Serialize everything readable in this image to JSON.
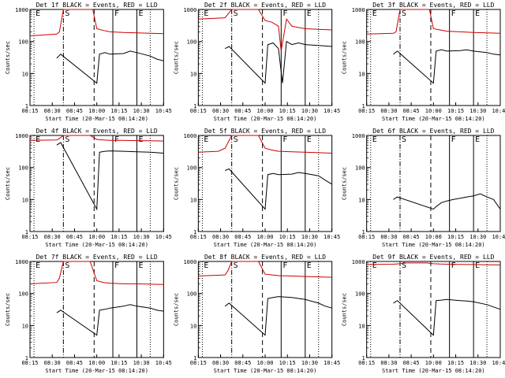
{
  "chart_data": [
    {
      "type": "line",
      "title": "Det 1f BLACK = Events, RED = LLD",
      "xlabel": "Start Time (20-Mar-15 08:14:20)",
      "ylabel": "Counts/sec",
      "x_ticks": [
        "08:15",
        "08:30",
        "08:45",
        "10:00",
        "10:15",
        "10:30",
        "10:45"
      ],
      "y_scale": "log",
      "ylim": [
        1,
        1000
      ],
      "y_ticks": [
        "1",
        "10",
        "100",
        "1000"
      ],
      "markers": [
        {
          "label": "E",
          "style": "dotted",
          "x": 0.03
        },
        {
          "label": "S",
          "style": "dashdot",
          "x": 0.25
        },
        {
          "label": "",
          "style": "dashed",
          "x": 0.48
        },
        {
          "label": "F",
          "style": "solid",
          "x": 0.62
        },
        {
          "label": "E",
          "style": "solid",
          "x": 0.8
        },
        {
          "label": "",
          "style": "dotted",
          "x": 0.9
        }
      ],
      "series": [
        {
          "color": "#cc0000",
          "x": [
            0.0,
            0.2,
            0.22,
            0.25,
            0.47,
            0.5,
            0.55,
            0.6,
            0.7,
            0.8,
            0.9,
            1.0
          ],
          "y": [
            150,
            170,
            200,
            1000,
            1000,
            250,
            220,
            200,
            190,
            185,
            180,
            175
          ]
        },
        {
          "color": "#000000",
          "x": [
            0.2,
            0.23,
            0.5,
            0.52,
            0.56,
            0.6,
            0.7,
            0.75,
            0.8,
            0.9,
            0.95,
            1.0
          ],
          "y": [
            30,
            40,
            5,
            40,
            45,
            40,
            42,
            50,
            45,
            35,
            28,
            25
          ]
        }
      ]
    },
    {
      "type": "line",
      "title": "Det 2f BLACK = Events, RED = LLD",
      "xlabel": "Start Time (20-Mar-15 08:14:20)",
      "ylabel": "Counts/sec",
      "x_ticks": [
        "08:15",
        "08:30",
        "08:45",
        "10:00",
        "10:15",
        "10:30",
        "10:45"
      ],
      "y_scale": "log",
      "ylim": [
        1,
        1000
      ],
      "y_ticks": [
        "1",
        "10",
        "100",
        "1000"
      ],
      "markers": [
        {
          "label": "E",
          "style": "dotted",
          "x": 0.03
        },
        {
          "label": "S",
          "style": "dashdot",
          "x": 0.25
        },
        {
          "label": "",
          "style": "dashed",
          "x": 0.48
        },
        {
          "label": "F",
          "style": "solid",
          "x": 0.62
        },
        {
          "label": "E",
          "style": "solid",
          "x": 0.8
        },
        {
          "label": "",
          "style": "dotted",
          "x": 0.9
        }
      ],
      "series": [
        {
          "color": "#cc0000",
          "x": [
            0.0,
            0.2,
            0.22,
            0.25,
            0.45,
            0.5,
            0.55,
            0.6,
            0.62,
            0.66,
            0.7,
            0.8,
            0.9,
            1.0
          ],
          "y": [
            500,
            550,
            700,
            1000,
            1000,
            450,
            400,
            300,
            50,
            500,
            300,
            250,
            240,
            230
          ]
        },
        {
          "color": "#000000",
          "x": [
            0.2,
            0.23,
            0.5,
            0.52,
            0.56,
            0.6,
            0.63,
            0.66,
            0.7,
            0.75,
            0.8,
            0.9,
            1.0
          ],
          "y": [
            60,
            70,
            5,
            80,
            90,
            60,
            5,
            100,
            80,
            90,
            80,
            75,
            70
          ]
        }
      ]
    },
    {
      "type": "line",
      "title": "Det 3f BLACK = Events, RED = LLD",
      "xlabel": "Start Time (20-Mar-15 08:14:20)",
      "ylabel": "Counts/sec",
      "x_ticks": [
        "08:15",
        "08:30",
        "08:45",
        "10:00",
        "10:15",
        "10:30",
        "10:45"
      ],
      "y_scale": "log",
      "ylim": [
        1,
        1000
      ],
      "y_ticks": [
        "1",
        "10",
        "100",
        "1000"
      ],
      "markers": [
        {
          "label": "E",
          "style": "dotted",
          "x": 0.03
        },
        {
          "label": "S",
          "style": "dashdot",
          "x": 0.25
        },
        {
          "label": "",
          "style": "dashed",
          "x": 0.48
        },
        {
          "label": "F",
          "style": "solid",
          "x": 0.62
        },
        {
          "label": "E",
          "style": "solid",
          "x": 0.8
        },
        {
          "label": "",
          "style": "dotted",
          "x": 0.9
        }
      ],
      "series": [
        {
          "color": "#cc0000",
          "x": [
            0.0,
            0.2,
            0.22,
            0.25,
            0.47,
            0.5,
            0.55,
            0.6,
            0.7,
            0.8,
            0.9,
            1.0
          ],
          "y": [
            170,
            180,
            200,
            1000,
            1000,
            250,
            230,
            210,
            200,
            190,
            185,
            180
          ]
        },
        {
          "color": "#000000",
          "x": [
            0.2,
            0.23,
            0.5,
            0.52,
            0.56,
            0.6,
            0.7,
            0.75,
            0.8,
            0.9,
            0.95,
            1.0
          ],
          "y": [
            40,
            50,
            5,
            50,
            55,
            50,
            52,
            55,
            50,
            45,
            40,
            38
          ]
        }
      ]
    },
    {
      "type": "line",
      "title": "Det 4f BLACK = Events, RED = LLD",
      "xlabel": "Start Time (20-Mar-15 08:14:20)",
      "ylabel": "Counts/sec",
      "x_ticks": [
        "08:15",
        "08:30",
        "08:45",
        "10:00",
        "10:15",
        "10:30",
        "10:45"
      ],
      "y_scale": "log",
      "ylim": [
        1,
        1000
      ],
      "y_ticks": [
        "1",
        "10",
        "100",
        "1000"
      ],
      "markers": [
        {
          "label": "E",
          "style": "dotted",
          "x": 0.03
        },
        {
          "label": "S",
          "style": "dashdot",
          "x": 0.25
        },
        {
          "label": "",
          "style": "dashed",
          "x": 0.48
        },
        {
          "label": "F",
          "style": "solid",
          "x": 0.62
        },
        {
          "label": "E",
          "style": "solid",
          "x": 0.8
        },
        {
          "label": "",
          "style": "dotted",
          "x": 0.9
        }
      ],
      "series": [
        {
          "color": "#cc0000",
          "x": [
            0.0,
            0.2,
            0.22,
            0.25,
            0.45,
            0.5,
            0.55,
            0.6,
            0.7,
            0.8,
            0.9,
            1.0
          ],
          "y": [
            700,
            720,
            800,
            1000,
            1000,
            750,
            720,
            700,
            700,
            690,
            680,
            670
          ]
        },
        {
          "color": "#000000",
          "x": [
            0.2,
            0.23,
            0.5,
            0.52,
            0.56,
            0.6,
            0.7,
            0.8,
            0.9,
            0.95,
            1.0
          ],
          "y": [
            500,
            600,
            5,
            300,
            320,
            330,
            320,
            310,
            300,
            290,
            280
          ]
        }
      ]
    },
    {
      "type": "line",
      "title": "Det 5f BLACK = Events, RED = LLD",
      "xlabel": "Start Time (20-Mar-15 08:14:20)",
      "ylabel": "Counts/sec",
      "x_ticks": [
        "08:15",
        "08:30",
        "08:45",
        "10:00",
        "10:15",
        "10:30",
        "10:45"
      ],
      "y_scale": "log",
      "ylim": [
        1,
        1000
      ],
      "y_ticks": [
        "1",
        "10",
        "100",
        "1000"
      ],
      "markers": [
        {
          "label": "E",
          "style": "dotted",
          "x": 0.03
        },
        {
          "label": "S",
          "style": "dashdot",
          "x": 0.25
        },
        {
          "label": "",
          "style": "dashed",
          "x": 0.48
        },
        {
          "label": "F",
          "style": "solid",
          "x": 0.62
        },
        {
          "label": "E",
          "style": "solid",
          "x": 0.8
        },
        {
          "label": "",
          "style": "dotted",
          "x": 0.9
        }
      ],
      "series": [
        {
          "color": "#cc0000",
          "x": [
            0.0,
            0.15,
            0.2,
            0.25,
            0.45,
            0.5,
            0.55,
            0.6,
            0.7,
            0.8,
            0.9,
            1.0
          ],
          "y": [
            300,
            320,
            400,
            1000,
            1000,
            400,
            350,
            320,
            310,
            300,
            290,
            280
          ]
        },
        {
          "color": "#000000",
          "x": [
            0.2,
            0.23,
            0.5,
            0.52,
            0.56,
            0.6,
            0.7,
            0.75,
            0.8,
            0.9,
            0.95,
            1.0
          ],
          "y": [
            80,
            90,
            5,
            60,
            65,
            60,
            62,
            70,
            65,
            55,
            40,
            30
          ]
        }
      ]
    },
    {
      "type": "line",
      "title": "Det 6f BLACK = Events, RED = LLD",
      "xlabel": "Start Time (20-Mar-15 08:14:20)",
      "ylabel": "Counts/sec",
      "x_ticks": [
        "08:15",
        "08:30",
        "08:45",
        "10:00",
        "10:15",
        "10:30",
        "10:45"
      ],
      "y_scale": "log",
      "ylim": [
        1,
        1000
      ],
      "y_ticks": [
        "1",
        "10",
        "100",
        "1000"
      ],
      "markers": [
        {
          "label": "E",
          "style": "dotted",
          "x": 0.03
        },
        {
          "label": "S",
          "style": "dashdot",
          "x": 0.25
        },
        {
          "label": "",
          "style": "dashed",
          "x": 0.48
        },
        {
          "label": "F",
          "style": "solid",
          "x": 0.62
        },
        {
          "label": "E",
          "style": "solid",
          "x": 0.8
        },
        {
          "label": "",
          "style": "dotted",
          "x": 0.9
        }
      ],
      "series": [
        {
          "color": "#000000",
          "x": [
            0.2,
            0.23,
            0.5,
            0.52,
            0.56,
            0.6,
            0.65,
            0.7,
            0.75,
            0.8,
            0.85,
            0.9,
            0.95,
            1.0
          ],
          "y": [
            10,
            12,
            5,
            6,
            8,
            9,
            10,
            11,
            12,
            13,
            15,
            12,
            10,
            5
          ]
        }
      ]
    },
    {
      "type": "line",
      "title": "Det 7f BLACK = Events, RED = LLD",
      "xlabel": "Start Time (20-Mar-15 08:14:20)",
      "ylabel": "Counts/sec",
      "x_ticks": [
        "08:15",
        "08:30",
        "08:45",
        "10:00",
        "10:15",
        "10:30",
        "10:45"
      ],
      "y_scale": "log",
      "ylim": [
        1,
        1000
      ],
      "y_ticks": [
        "1",
        "10",
        "100",
        "1000"
      ],
      "markers": [
        {
          "label": "E",
          "style": "dotted",
          "x": 0.03
        },
        {
          "label": "S",
          "style": "dashdot",
          "x": 0.25
        },
        {
          "label": "",
          "style": "dashed",
          "x": 0.48
        },
        {
          "label": "F",
          "style": "solid",
          "x": 0.62
        },
        {
          "label": "E",
          "style": "solid",
          "x": 0.8
        },
        {
          "label": "",
          "style": "dotted",
          "x": 0.9
        }
      ],
      "series": [
        {
          "color": "#cc0000",
          "x": [
            0.0,
            0.2,
            0.22,
            0.25,
            0.45,
            0.5,
            0.55,
            0.6,
            0.7,
            0.8,
            0.9,
            1.0
          ],
          "y": [
            200,
            220,
            300,
            1000,
            1000,
            250,
            220,
            210,
            200,
            200,
            195,
            190
          ]
        },
        {
          "color": "#000000",
          "x": [
            0.2,
            0.23,
            0.5,
            0.52,
            0.56,
            0.6,
            0.7,
            0.75,
            0.8,
            0.9,
            0.95,
            1.0
          ],
          "y": [
            25,
            30,
            5,
            30,
            32,
            35,
            40,
            45,
            40,
            35,
            30,
            28
          ]
        }
      ]
    },
    {
      "type": "line",
      "title": "Det 8f BLACK = Events, RED = LLD",
      "xlabel": "Start Time (20-Mar-15 08:14:20)",
      "ylabel": "Counts/sec",
      "x_ticks": [
        "08:15",
        "08:30",
        "08:45",
        "10:00",
        "10:15",
        "10:30",
        "10:45"
      ],
      "y_scale": "log",
      "ylim": [
        1,
        1000
      ],
      "y_ticks": [
        "1",
        "10",
        "100",
        "1000"
      ],
      "markers": [
        {
          "label": "E",
          "style": "dotted",
          "x": 0.03
        },
        {
          "label": "S",
          "style": "dashdot",
          "x": 0.25
        },
        {
          "label": "",
          "style": "dashed",
          "x": 0.48
        },
        {
          "label": "F",
          "style": "solid",
          "x": 0.62
        },
        {
          "label": "E",
          "style": "solid",
          "x": 0.8
        },
        {
          "label": "",
          "style": "dotted",
          "x": 0.9
        }
      ],
      "series": [
        {
          "color": "#cc0000",
          "x": [
            0.0,
            0.2,
            0.22,
            0.25,
            0.45,
            0.5,
            0.55,
            0.6,
            0.7,
            0.8,
            0.9,
            1.0
          ],
          "y": [
            350,
            380,
            500,
            1000,
            1000,
            400,
            380,
            360,
            350,
            340,
            330,
            320
          ]
        },
        {
          "color": "#000000",
          "x": [
            0.2,
            0.23,
            0.5,
            0.52,
            0.56,
            0.6,
            0.7,
            0.75,
            0.8,
            0.9,
            0.95,
            1.0
          ],
          "y": [
            40,
            50,
            5,
            70,
            75,
            80,
            75,
            70,
            65,
            50,
            40,
            35
          ]
        }
      ]
    },
    {
      "type": "line",
      "title": "Det 9f BLACK = Events, RED = LLD",
      "xlabel": "Start Time (20-Mar-15 08:14:20)",
      "ylabel": "Counts/sec",
      "x_ticks": [
        "08:15",
        "08:30",
        "08:45",
        "10:00",
        "10:15",
        "10:30",
        "10:45"
      ],
      "y_scale": "log",
      "ylim": [
        1,
        1000
      ],
      "y_ticks": [
        "1",
        "10",
        "100",
        "1000"
      ],
      "markers": [
        {
          "label": "E",
          "style": "dotted",
          "x": 0.03
        },
        {
          "label": "S",
          "style": "dashdot",
          "x": 0.25
        },
        {
          "label": "",
          "style": "dashed",
          "x": 0.48
        },
        {
          "label": "F",
          "style": "solid",
          "x": 0.62
        },
        {
          "label": "E",
          "style": "solid",
          "x": 0.8
        },
        {
          "label": "",
          "style": "dotted",
          "x": 0.9
        }
      ],
      "series": [
        {
          "color": "#cc0000",
          "x": [
            0.0,
            0.2,
            0.25,
            0.3,
            0.45,
            0.5,
            0.55,
            0.6,
            0.7,
            0.8,
            0.9,
            1.0
          ],
          "y": [
            800,
            820,
            850,
            900,
            900,
            850,
            830,
            820,
            810,
            800,
            790,
            780
          ]
        },
        {
          "color": "#000000",
          "x": [
            0.2,
            0.23,
            0.5,
            0.52,
            0.56,
            0.6,
            0.7,
            0.75,
            0.8,
            0.9,
            0.95,
            1.0
          ],
          "y": [
            50,
            60,
            5,
            60,
            62,
            65,
            60,
            58,
            55,
            45,
            38,
            32
          ]
        }
      ]
    }
  ]
}
